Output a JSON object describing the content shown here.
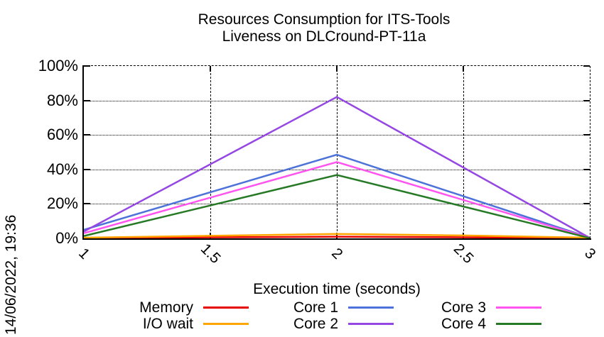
{
  "title": {
    "lines": [
      "Resources Consumption for ITS-Tools",
      "Liveness on DLCround-PT-11a"
    ]
  },
  "timestamp": "14/06/2022, 19:36",
  "chart_data": {
    "type": "line",
    "title": "Resources Consumption for ITS-Tools / Liveness on DLCround-PT-11a",
    "xlabel": "Execution time (seconds)",
    "ylabel": "",
    "xlim": [
      1,
      3
    ],
    "ylim": [
      0,
      100
    ],
    "xticks": [
      1,
      1.5,
      2,
      2.5,
      3
    ],
    "xtick_labels": [
      "1",
      "1.5",
      "2",
      "2.5",
      "3"
    ],
    "yticks": [
      0,
      20,
      40,
      60,
      80,
      100
    ],
    "ytick_labels": [
      "0%",
      "20%",
      "40%",
      "60%",
      "80%",
      "100%"
    ],
    "grid": true,
    "legend_position": "bottom",
    "series": [
      {
        "name": "Memory",
        "color": "#e60000",
        "x": [
          1,
          1.5,
          2,
          2.5,
          3
        ],
        "values": [
          0.2,
          0.6,
          1.0,
          0.6,
          0.2
        ]
      },
      {
        "name": "I/O wait",
        "color": "#ffa500",
        "x": [
          1,
          1.5,
          2,
          2.5,
          3
        ],
        "values": [
          0.4,
          1.5,
          2.6,
          1.7,
          0.4
        ]
      },
      {
        "name": "Core 1",
        "color": "#4d72d9",
        "x": [
          1,
          2,
          3
        ],
        "values": [
          5.0,
          48.5,
          0.4
        ]
      },
      {
        "name": "Core 2",
        "color": "#9447e3",
        "x": [
          1,
          2,
          3
        ],
        "values": [
          4.0,
          82.0,
          0.3
        ]
      },
      {
        "name": "Core 3",
        "color": "#ff55ee",
        "x": [
          1,
          2,
          3
        ],
        "values": [
          3.0,
          44.3,
          0.3
        ]
      },
      {
        "name": "Core 4",
        "color": "#267a26",
        "x": [
          1,
          2,
          3
        ],
        "values": [
          1.4,
          36.8,
          0.2
        ]
      }
    ]
  },
  "legend": {
    "rows": [
      [
        "Memory",
        "Core 1",
        "Core 3"
      ],
      [
        "I/O wait",
        "Core 2",
        "Core 4"
      ]
    ]
  }
}
